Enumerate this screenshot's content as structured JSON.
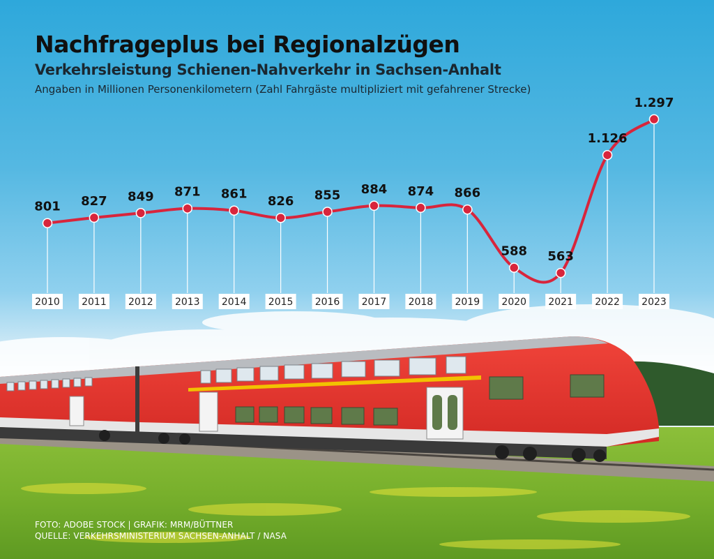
{
  "chart_data": {
    "type": "line",
    "title": "Nachfrageplus bei Regionalzügen",
    "subtitle": "Verkehrsleistung Schienen-Nahverkehr in Sachsen-Anhalt",
    "note": "Angaben in Millionen Personenkilometern  (Zahl Fahrgäste multipliziert mit gefahrener Strecke)",
    "categories": [
      "2010",
      "2011",
      "2012",
      "2013",
      "2014",
      "2015",
      "2016",
      "2017",
      "2018",
      "2019",
      "2020",
      "2021",
      "2022",
      "2023"
    ],
    "values": [
      801,
      827,
      849,
      871,
      861,
      826,
      855,
      884,
      874,
      866,
      588,
      563,
      1126,
      1297
    ],
    "value_labels": [
      "801",
      "827",
      "849",
      "871",
      "861",
      "826",
      "855",
      "884",
      "874",
      "866",
      "588",
      "563",
      "1.126",
      "1.297"
    ],
    "ylim": [
      500,
      1400
    ],
    "grid": false,
    "legend": "none",
    "line_color": "#d8253c",
    "marker_color": "#d8253c"
  },
  "footer": {
    "credit": "FOTO: ADOBE STOCK | GRAFIK: MRM/BÜTTNER",
    "source": "QUELLE: VERKEHRSMINISTERIUM SACHSEN-ANHALT / NASA"
  }
}
